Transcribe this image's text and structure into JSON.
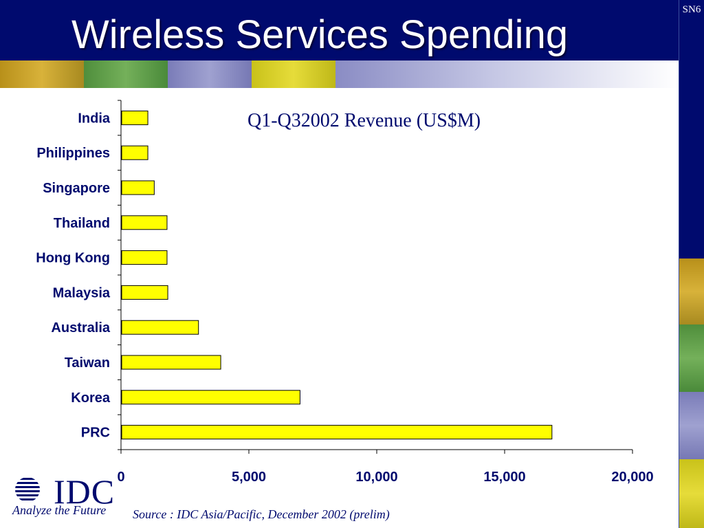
{
  "slide": {
    "title": "Wireless Services Spending",
    "number": "SN6",
    "source": "Source : IDC Asia/Pacific, December 2002 (prelim)"
  },
  "logo": {
    "name": "IDC",
    "tagline": "Analyze the Future"
  },
  "colors": {
    "navy": "#000a6e",
    "bar_fill": "#ffff00",
    "bar_stroke": "#000000",
    "stripe_gold": "#c9a227",
    "stripe_green": "#5f9e4a",
    "stripe_lavender": "#8a8cc4",
    "stripe_yellow": "#d9d21e"
  },
  "chart_data": {
    "type": "bar",
    "orientation": "horizontal",
    "title": "Q1-Q32002 Revenue (US$M)",
    "xlabel": "",
    "ylabel": "",
    "categories": [
      "India",
      "Philippines",
      "Singapore",
      "Thailand",
      "Hong Kong",
      "Malaysia",
      "Australia",
      "Taiwan",
      "Korea",
      "PRC"
    ],
    "values": [
      1050,
      1050,
      1300,
      1800,
      1800,
      1830,
      3030,
      3900,
      7000,
      16850
    ],
    "xlim": [
      0,
      20000
    ],
    "ticks": [
      0,
      5000,
      10000,
      15000,
      20000
    ],
    "tick_labels": [
      "0",
      "5,000",
      "10,000",
      "15,000",
      "20,000"
    ],
    "grid": false,
    "legend": "none"
  }
}
